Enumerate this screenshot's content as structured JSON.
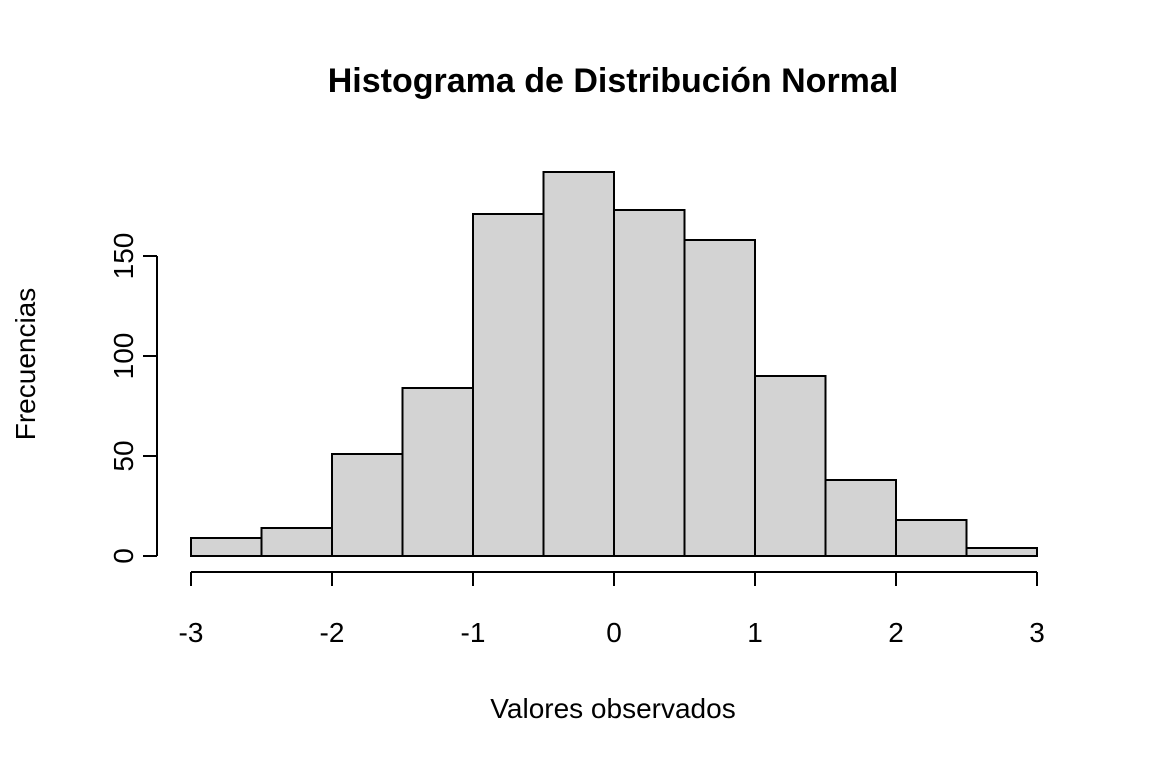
{
  "chart_data": {
    "type": "bar",
    "title": "Histograma de Distribución Normal",
    "xlabel": "Valores observados",
    "ylabel": "Frecuencias",
    "bin_edges": [
      -3,
      -2.5,
      -2,
      -1.5,
      -1,
      -0.5,
      0,
      0.5,
      1,
      1.5,
      2,
      2.5,
      3
    ],
    "values": [
      9,
      14,
      51,
      84,
      171,
      192,
      173,
      158,
      90,
      38,
      18,
      4
    ],
    "xlim": [
      -3,
      3
    ],
    "ylim": [
      0,
      192
    ],
    "x_ticks": [
      "-3",
      "-2",
      "-1",
      "0",
      "1",
      "2",
      "3"
    ],
    "y_ticks": [
      "0",
      "50",
      "100",
      "150"
    ],
    "bar_fill": "#d3d3d3",
    "bar_stroke": "#000000",
    "grid": false,
    "legend": "none"
  }
}
